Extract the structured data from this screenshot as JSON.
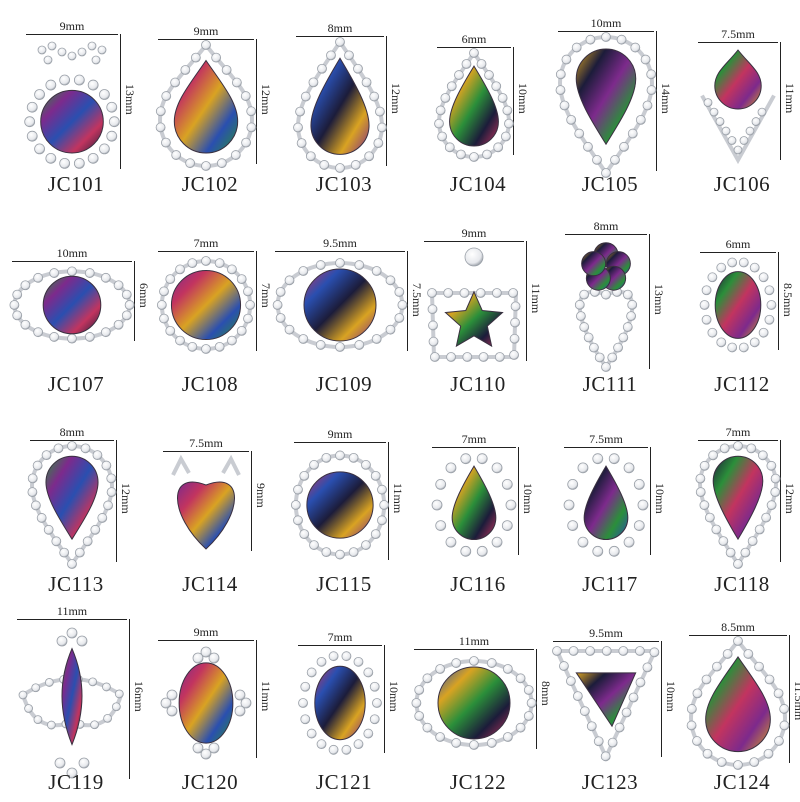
{
  "items": [
    {
      "code": "JC101",
      "width": "9mm",
      "height": "13mm",
      "shape": "round-bow"
    },
    {
      "code": "JC102",
      "width": "9mm",
      "height": "12mm",
      "shape": "drop"
    },
    {
      "code": "JC103",
      "width": "8mm",
      "height": "12mm",
      "shape": "heart-drop"
    },
    {
      "code": "JC104",
      "width": "6mm",
      "height": "10mm",
      "shape": "drop"
    },
    {
      "code": "JC105",
      "width": "10mm",
      "height": "14mm",
      "shape": "inverted-drop"
    },
    {
      "code": "JC106",
      "width": "7.5mm",
      "height": "11mm",
      "shape": "drop-point"
    },
    {
      "code": "JC107",
      "width": "10mm",
      "height": "6mm",
      "shape": "round-wide"
    },
    {
      "code": "JC108",
      "width": "7mm",
      "height": "7mm",
      "shape": "round"
    },
    {
      "code": "JC109",
      "width": "9.5mm",
      "height": "7.5mm",
      "shape": "round-wide"
    },
    {
      "code": "JC110",
      "width": "9mm",
      "height": "11mm",
      "shape": "star-crown"
    },
    {
      "code": "JC111",
      "width": "8mm",
      "height": "13mm",
      "shape": "flower-heart"
    },
    {
      "code": "JC112",
      "width": "6mm",
      "height": "8.5mm",
      "shape": "oval"
    },
    {
      "code": "JC113",
      "width": "8mm",
      "height": "12mm",
      "shape": "inverted-drop"
    },
    {
      "code": "JC114",
      "width": "7.5mm",
      "height": "9mm",
      "shape": "heart"
    },
    {
      "code": "JC115",
      "width": "9mm",
      "height": "11mm",
      "shape": "round-shield"
    },
    {
      "code": "JC116",
      "width": "7mm",
      "height": "10mm",
      "shape": "drop-sun"
    },
    {
      "code": "JC117",
      "width": "7.5mm",
      "height": "10mm",
      "shape": "drop-sun"
    },
    {
      "code": "JC118",
      "width": "7mm",
      "height": "12mm",
      "shape": "inverted-drop"
    },
    {
      "code": "JC119",
      "width": "11mm",
      "height": "16mm",
      "shape": "marquise-crown"
    },
    {
      "code": "JC120",
      "width": "9mm",
      "height": "11mm",
      "shape": "oval-cross"
    },
    {
      "code": "JC121",
      "width": "7mm",
      "height": "10mm",
      "shape": "oval-sun"
    },
    {
      "code": "JC122",
      "width": "11mm",
      "height": "8mm",
      "shape": "round-wide"
    },
    {
      "code": "JC123",
      "width": "9.5mm",
      "height": "10mm",
      "shape": "triangle"
    },
    {
      "code": "JC124",
      "width": "8.5mm",
      "height": "11.5mm",
      "shape": "drop"
    }
  ],
  "colors": {
    "gem_palette": [
      "#2b8f3a",
      "#7d2a8c",
      "#c2345f",
      "#2a4fb0",
      "#d9a322",
      "#1c1c3a"
    ],
    "rhinestone": "#e6e8ec",
    "setting": "#c9ccd2",
    "text": "#222222"
  }
}
